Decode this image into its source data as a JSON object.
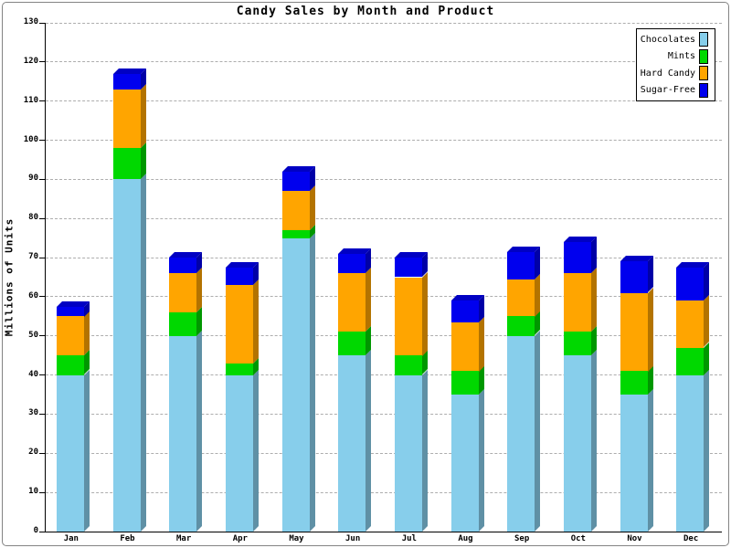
{
  "window": {
    "background_color": "#ffffff",
    "panel_border_color": "#848484"
  },
  "chart_data": {
    "type": "bar",
    "variant": "stacked-3d",
    "title": "Candy Sales by Month and Product",
    "xlabel": "",
    "ylabel": "Millions of Units",
    "ylim": [
      0,
      130
    ],
    "ytick_interval": 10,
    "grid": "horizontal-dashed",
    "gridline_color": "#adadad",
    "legend_position": "top-right",
    "categories": [
      "Jan",
      "Feb",
      "Mar",
      "Apr",
      "May",
      "Jun",
      "Jul",
      "Aug",
      "Sep",
      "Oct",
      "Nov",
      "Dec"
    ],
    "series": [
      {
        "name": "Chocolates",
        "color": "#87CEEB",
        "values": [
          40,
          90,
          50,
          40,
          75,
          45,
          40,
          35,
          50,
          45,
          35,
          40
        ]
      },
      {
        "name": "Mints",
        "color": "#00D800",
        "values": [
          5,
          8,
          6,
          3,
          2,
          6,
          5,
          6,
          5,
          6,
          6,
          7
        ]
      },
      {
        "name": "Hard Candy",
        "color": "#FFA500",
        "values": [
          10,
          15,
          10,
          20,
          10,
          15,
          20,
          12.5,
          9.5,
          15,
          20,
          12
        ]
      },
      {
        "name": "Sugar-Free",
        "color": "#0000EE",
        "values": [
          2.5,
          4,
          4,
          4.5,
          5,
          5,
          5,
          5.5,
          7,
          8,
          8,
          8.5
        ]
      }
    ],
    "stack_totals": [
      57.5,
      117,
      70,
      67.5,
      92,
      71,
      70,
      59,
      71.5,
      74,
      69,
      67.5
    ]
  }
}
